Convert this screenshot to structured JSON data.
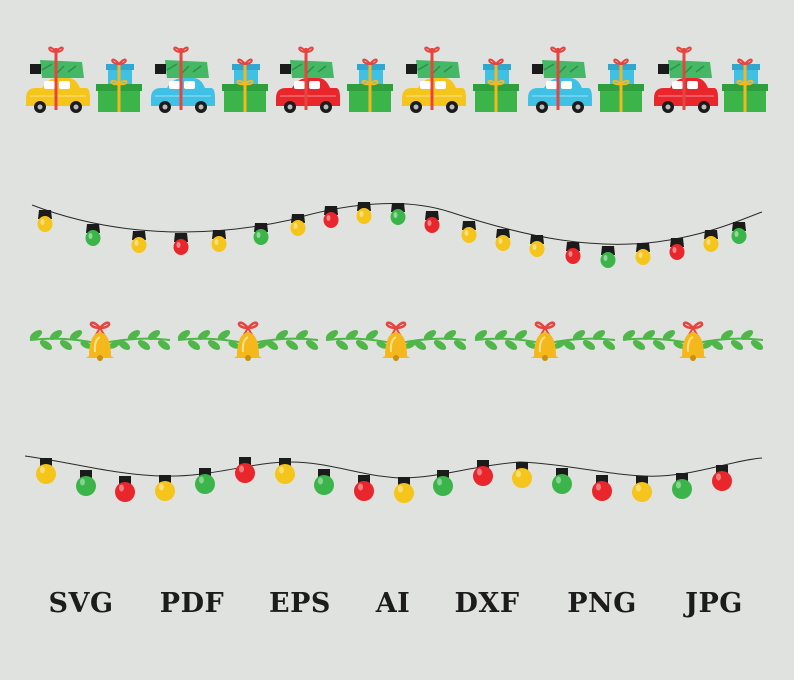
{
  "palette": {
    "background": "#e0e2df",
    "yellow": "#f5c51b",
    "green": "#3bb54a",
    "red": "#e8262b",
    "blue": "#3fc1e5",
    "leaf": "#4fb749",
    "tree": "#45b865",
    "ribbon": "#e6453f",
    "bell": "#f4b81c",
    "wire": "#2a2a2a",
    "socket": "#1b1b1b",
    "text": "#1c1c1c"
  },
  "borders": [
    {
      "name": "cars-and-gifts-border",
      "car_colors": [
        "yellow",
        "blue",
        "red",
        "yellow",
        "blue",
        "red"
      ],
      "gift_count": 6
    },
    {
      "name": "cone-lights-border",
      "bulb_colors": [
        "yellow",
        "green",
        "yellow",
        "red",
        "yellow",
        "green",
        "yellow",
        "red",
        "yellow",
        "green",
        "red",
        "yellow",
        "yellow",
        "yellow",
        "red",
        "green",
        "yellow",
        "red",
        "yellow",
        "green"
      ]
    },
    {
      "name": "bells-and-leaves-border",
      "bell_count": 5
    },
    {
      "name": "round-lights-border",
      "bulb_colors": [
        "yellow",
        "green",
        "red",
        "yellow",
        "green",
        "red",
        "yellow",
        "green",
        "red",
        "yellow",
        "green",
        "red",
        "yellow",
        "green",
        "red",
        "yellow",
        "green",
        "red"
      ]
    }
  ],
  "formats": [
    "SVG",
    "PDF",
    "EPS",
    "AI",
    "DXF",
    "PNG",
    "JPG"
  ]
}
